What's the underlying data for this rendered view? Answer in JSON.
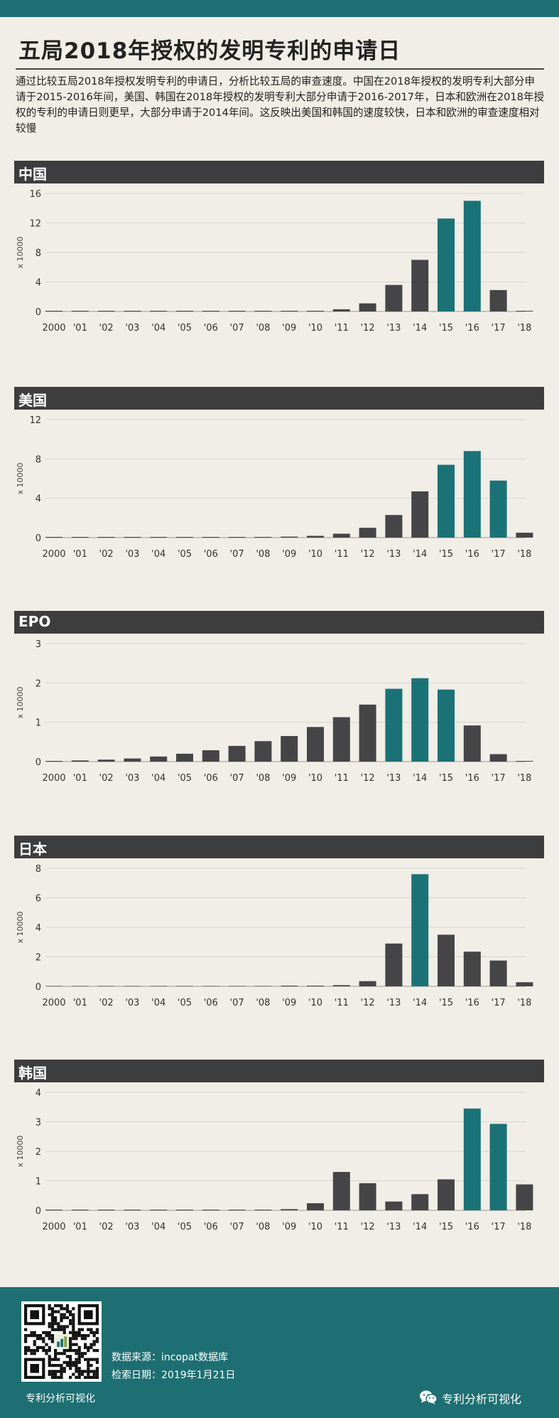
{
  "header": {
    "title": "五局2018年授权的发明专利的申请日",
    "description": "通过比较五局2018年授权发明专利的申请日，分析比较五局的审查速度。中国在2018年授权的发明专利大部分申请于2015-2016年间，美国、韩国在2018年授权的发明专利大部分申请于2016-2017年，日本和欧洲在2018年授权的专利的申请日则更早，大部分申请于2014年间。这反映出美国和韩国的速度较快，日本和欧洲的审查速度相对较慢"
  },
  "colors": {
    "bar_default": "#454547",
    "bar_highlight": "#1b7276",
    "panel_header": "#3d3d3d",
    "accent": "#1e6f73",
    "background": "#f0eee6"
  },
  "chart_data": [
    {
      "type": "bar",
      "title": "中国",
      "ylabel": "x 10000",
      "categories": [
        "2000",
        "'01",
        "'02",
        "'03",
        "'04",
        "'05",
        "'06",
        "'07",
        "'08",
        "'09",
        "'10",
        "'11",
        "'12",
        "'13",
        "'14",
        "'15",
        "'16",
        "'17",
        "'18"
      ],
      "values": [
        0.01,
        0.01,
        0.01,
        0.01,
        0.01,
        0.01,
        0.01,
        0.02,
        0.03,
        0.05,
        0.1,
        0.3,
        1.1,
        3.6,
        7.0,
        12.6,
        15.0,
        2.9,
        0.05
      ],
      "highlighted": [
        "'15",
        "'16"
      ],
      "ylim": [
        0,
        16
      ],
      "yticks": [
        0,
        4,
        8,
        12,
        16
      ],
      "grid": true
    },
    {
      "type": "bar",
      "title": "美国",
      "ylabel": "x 10000",
      "categories": [
        "2000",
        "'01",
        "'02",
        "'03",
        "'04",
        "'05",
        "'06",
        "'07",
        "'08",
        "'09",
        "'10",
        "'11",
        "'12",
        "'13",
        "'14",
        "'15",
        "'16",
        "'17",
        "'18"
      ],
      "values": [
        0.01,
        0.01,
        0.01,
        0.01,
        0.01,
        0.02,
        0.03,
        0.04,
        0.06,
        0.1,
        0.18,
        0.4,
        1.0,
        2.3,
        4.7,
        7.4,
        8.8,
        5.8,
        0.5
      ],
      "highlighted": [
        "'15",
        "'16",
        "'17"
      ],
      "ylim": [
        0,
        12
      ],
      "yticks": [
        0,
        4,
        8,
        12
      ],
      "grid": true
    },
    {
      "type": "bar",
      "title": "EPO",
      "ylabel": "x 10000",
      "categories": [
        "2000",
        "'01",
        "'02",
        "'03",
        "'04",
        "'05",
        "'06",
        "'07",
        "'08",
        "'09",
        "'10",
        "'11",
        "'12",
        "'13",
        "'14",
        "'15",
        "'16",
        "'17",
        "'18"
      ],
      "values": [
        0.01,
        0.03,
        0.05,
        0.08,
        0.13,
        0.2,
        0.29,
        0.4,
        0.52,
        0.65,
        0.88,
        1.13,
        1.45,
        1.85,
        2.12,
        1.83,
        0.92,
        0.19,
        0.01
      ],
      "highlighted": [
        "'13",
        "'14",
        "'15"
      ],
      "ylim": [
        0,
        3
      ],
      "yticks": [
        0,
        1,
        2,
        3
      ],
      "grid": true
    },
    {
      "type": "bar",
      "title": "日本",
      "ylabel": "x 10000",
      "categories": [
        "2000",
        "'01",
        "'02",
        "'03",
        "'04",
        "'05",
        "'06",
        "'07",
        "'08",
        "'09",
        "'10",
        "'11",
        "'12",
        "'13",
        "'14",
        "'15",
        "'16",
        "'17",
        "'18"
      ],
      "values": [
        0,
        0,
        0,
        0,
        0,
        0,
        0,
        0,
        0,
        0.01,
        0.02,
        0.08,
        0.35,
        2.9,
        7.6,
        3.5,
        2.35,
        1.75,
        0.28
      ],
      "highlighted": [
        "'14"
      ],
      "ylim": [
        0,
        8
      ],
      "yticks": [
        0,
        2,
        4,
        6,
        8
      ],
      "grid": true
    },
    {
      "type": "bar",
      "title": "韩国",
      "ylabel": "x 10000",
      "categories": [
        "2000",
        "'01",
        "'02",
        "'03",
        "'04",
        "'05",
        "'06",
        "'07",
        "'08",
        "'09",
        "'10",
        "'11",
        "'12",
        "'13",
        "'14",
        "'15",
        "'16",
        "'17",
        "'18"
      ],
      "values": [
        0.01,
        0.01,
        0.01,
        0.01,
        0.01,
        0.01,
        0.01,
        0.01,
        0.01,
        0.04,
        0.24,
        1.3,
        0.92,
        0.3,
        0.55,
        1.05,
        3.45,
        2.93,
        0.88
      ],
      "highlighted": [
        "'16",
        "'17"
      ],
      "ylim": [
        0,
        4
      ],
      "yticks": [
        0,
        1,
        2,
        3,
        4
      ],
      "grid": true
    }
  ],
  "footer": {
    "brand": "专利分析可视化",
    "source": "数据来源：incopat数据库",
    "date": "检索日期：2019年1月21日",
    "wechat_account": "专利分析可视化",
    "qr_icon": "qr-code-icon",
    "wechat_icon": "wechat-icon"
  }
}
